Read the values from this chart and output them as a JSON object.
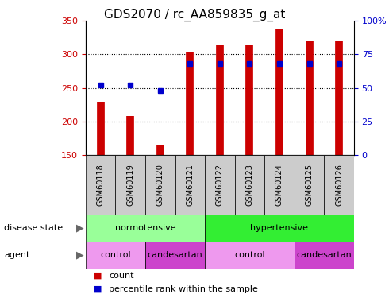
{
  "title": "GDS2070 / rc_AA859835_g_at",
  "samples": [
    "GSM60118",
    "GSM60119",
    "GSM60120",
    "GSM60121",
    "GSM60122",
    "GSM60123",
    "GSM60124",
    "GSM60125",
    "GSM60126"
  ],
  "counts": [
    230,
    208,
    165,
    303,
    313,
    315,
    337,
    321,
    320
  ],
  "percentile_ranks": [
    52,
    52,
    48,
    68,
    68,
    68,
    68,
    68,
    68
  ],
  "ylim_left": [
    150,
    350
  ],
  "ylim_right": [
    0,
    100
  ],
  "yticks_left": [
    150,
    200,
    250,
    300,
    350
  ],
  "yticks_right": [
    0,
    25,
    50,
    75,
    100
  ],
  "bar_color": "#cc0000",
  "dot_color": "#0000cc",
  "disease_state_groups": [
    {
      "label": "normotensive",
      "start": 0,
      "end": 4,
      "color": "#99ff99"
    },
    {
      "label": "hypertensive",
      "start": 4,
      "end": 9,
      "color": "#33ee33"
    }
  ],
  "agent_groups": [
    {
      "label": "control",
      "start": 0,
      "end": 2,
      "color": "#ee99ee"
    },
    {
      "label": "candesartan",
      "start": 2,
      "end": 4,
      "color": "#cc44cc"
    },
    {
      "label": "control",
      "start": 4,
      "end": 7,
      "color": "#ee99ee"
    },
    {
      "label": "candesartan",
      "start": 7,
      "end": 9,
      "color": "#cc44cc"
    }
  ],
  "tick_color_left": "#cc0000",
  "tick_color_right": "#0000cc",
  "bg_color": "#ffffff",
  "sample_row_color": "#cccccc",
  "dot_size": 5,
  "disease_row_label": "disease state",
  "agent_row_label": "agent"
}
